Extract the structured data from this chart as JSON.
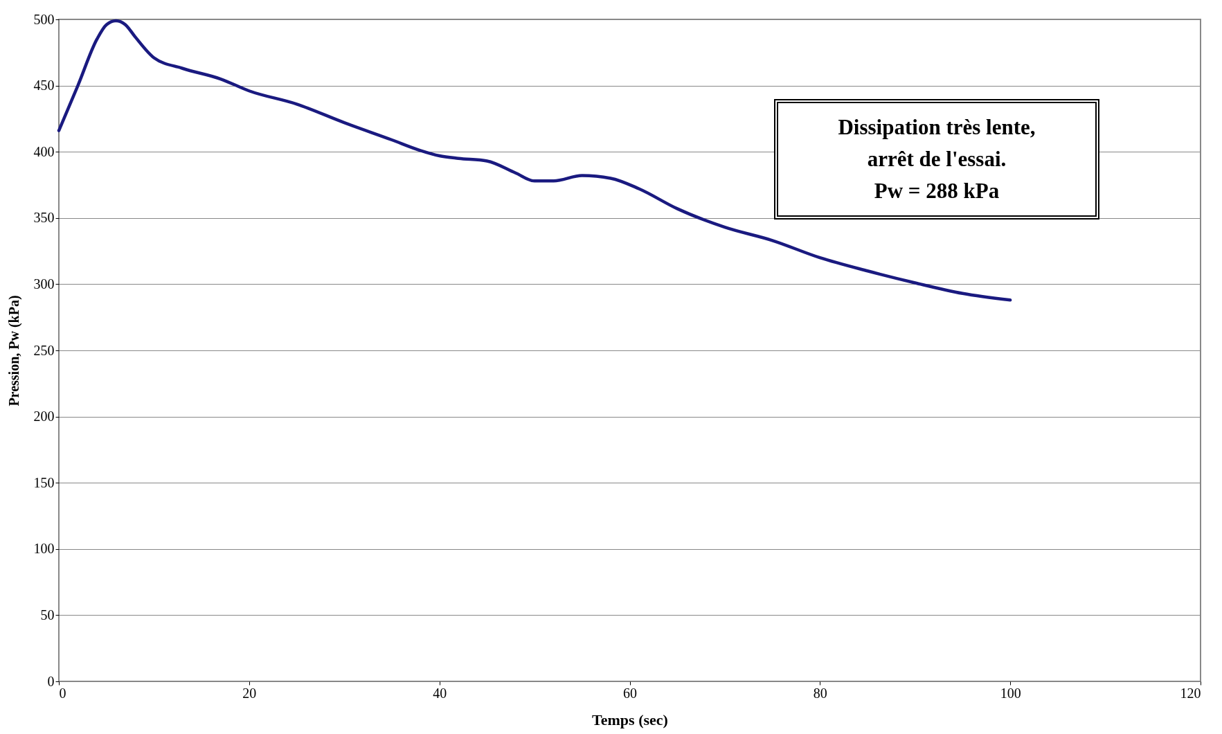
{
  "chart_data": {
    "type": "line",
    "xlabel": "Temps (sec)",
    "ylabel": "Pression, Pw (kPa)",
    "x": [
      0,
      2,
      4,
      5,
      6,
      7,
      8,
      10,
      13,
      17,
      20,
      25,
      30,
      35,
      38,
      40,
      42,
      45,
      48,
      50,
      52,
      55,
      58,
      61,
      65,
      70,
      75,
      80,
      85,
      90,
      95,
      100
    ],
    "series": [
      {
        "color": "#1a1a80",
        "values": [
          416,
          450,
          485,
          496,
          499,
          496,
          487,
          471,
          463,
          455,
          446,
          436,
          422,
          409,
          401,
          397,
          395,
          393,
          384,
          378,
          378,
          382,
          380,
          372,
          357,
          343,
          333,
          320,
          310,
          301,
          293,
          288
        ]
      }
    ],
    "xlim": [
      0,
      120
    ],
    "xticks": [
      0,
      20,
      40,
      60,
      80,
      100,
      120
    ],
    "ylim": [
      0,
      500
    ],
    "yticks": [
      0,
      50,
      100,
      150,
      200,
      250,
      300,
      350,
      400,
      450,
      500
    ],
    "grid": "y",
    "annotations": [
      "Dissipation très lente,\narrêt de l'essai.\nPw = 288 kPa"
    ]
  }
}
